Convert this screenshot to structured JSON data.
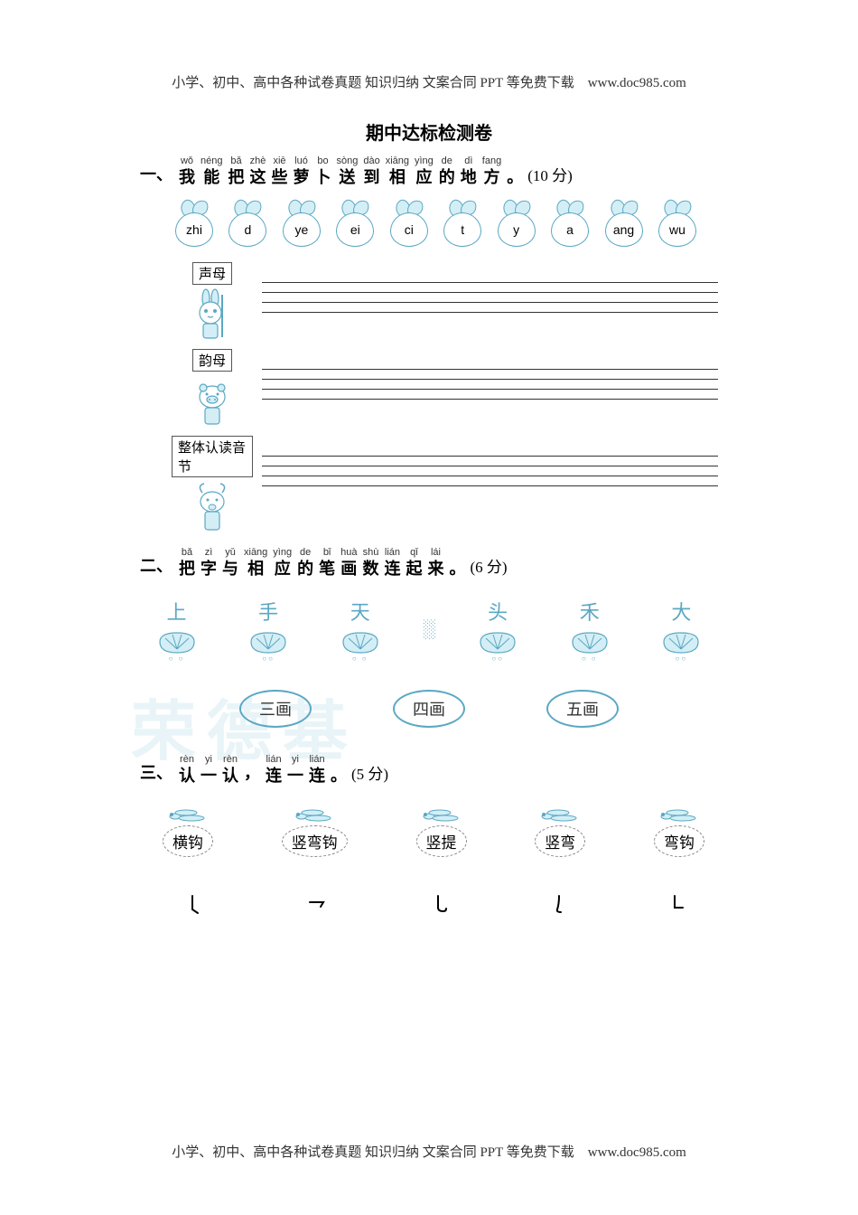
{
  "header": "小学、初中、高中各种试卷真题 知识归纳 文案合同 PPT 等免费下载　www.doc985.com",
  "footer": "小学、初中、高中各种试卷真题 知识归纳 文案合同 PPT 等免费下载　www.doc985.com",
  "title": "期中达标检测卷",
  "watermark": "荣德基",
  "colors": {
    "accent": "#5ba8c4",
    "accent_fill": "#d4eef5",
    "text": "#333333",
    "line": "#333333"
  },
  "q1": {
    "num": "一、",
    "chars": [
      {
        "py": "wǒ",
        "hz": "我"
      },
      {
        "py": "néng",
        "hz": "能"
      },
      {
        "py": "bǎ",
        "hz": "把"
      },
      {
        "py": "zhè",
        "hz": "这"
      },
      {
        "py": "xiē",
        "hz": "些"
      },
      {
        "py": "luó",
        "hz": "萝"
      },
      {
        "py": "bo",
        "hz": "卜"
      },
      {
        "py": "sòng",
        "hz": "送"
      },
      {
        "py": "dào",
        "hz": "到"
      },
      {
        "py": "xiāng",
        "hz": "相"
      },
      {
        "py": "yìng",
        "hz": "应"
      },
      {
        "py": "de",
        "hz": "的"
      },
      {
        "py": "dì",
        "hz": "地"
      },
      {
        "py": "fang",
        "hz": "方"
      }
    ],
    "points": "(10 分)",
    "radishes": [
      "zhi",
      "d",
      "ye",
      "ei",
      "ci",
      "t",
      "y",
      "a",
      "ang",
      "wu"
    ],
    "categories": [
      {
        "label": "声母",
        "animal": "rabbit"
      },
      {
        "label": "韵母",
        "animal": "pig"
      },
      {
        "label": "整体认读音节",
        "animal": "goat"
      }
    ]
  },
  "q2": {
    "num": "二、",
    "chars": [
      {
        "py": "bǎ",
        "hz": "把"
      },
      {
        "py": "zì",
        "hz": "字"
      },
      {
        "py": "yǔ",
        "hz": "与"
      },
      {
        "py": "xiāng",
        "hz": "相"
      },
      {
        "py": "yìng",
        "hz": "应"
      },
      {
        "py": "de",
        "hz": "的"
      },
      {
        "py": "bǐ",
        "hz": "笔"
      },
      {
        "py": "huà",
        "hz": "画"
      },
      {
        "py": "shù",
        "hz": "数"
      },
      {
        "py": "lián",
        "hz": "连"
      },
      {
        "py": "qǐ",
        "hz": "起"
      },
      {
        "py": "lái",
        "hz": "来"
      }
    ],
    "points": "(6 分)",
    "shells": [
      "上",
      "手",
      "天",
      "头",
      "禾",
      "大"
    ],
    "stroke_counts": [
      "三画",
      "四画",
      "五画"
    ]
  },
  "q3": {
    "num": "三、",
    "chars": [
      {
        "py": "rèn",
        "hz": "认"
      },
      {
        "py": "yi",
        "hz": "一"
      },
      {
        "py": "rèn",
        "hz": "认"
      },
      {
        "py": "",
        "hz": "，"
      },
      {
        "py": "lián",
        "hz": "连"
      },
      {
        "py": "yi",
        "hz": "一"
      },
      {
        "py": "lián",
        "hz": "连"
      }
    ],
    "points": "(5 分)",
    "stroke_names": [
      "横钩",
      "竖弯钩",
      "竖提",
      "竖弯",
      "弯钩"
    ],
    "stroke_symbols": [
      "𠄌",
      "乛",
      "乚",
      "丿",
      "乚"
    ]
  }
}
